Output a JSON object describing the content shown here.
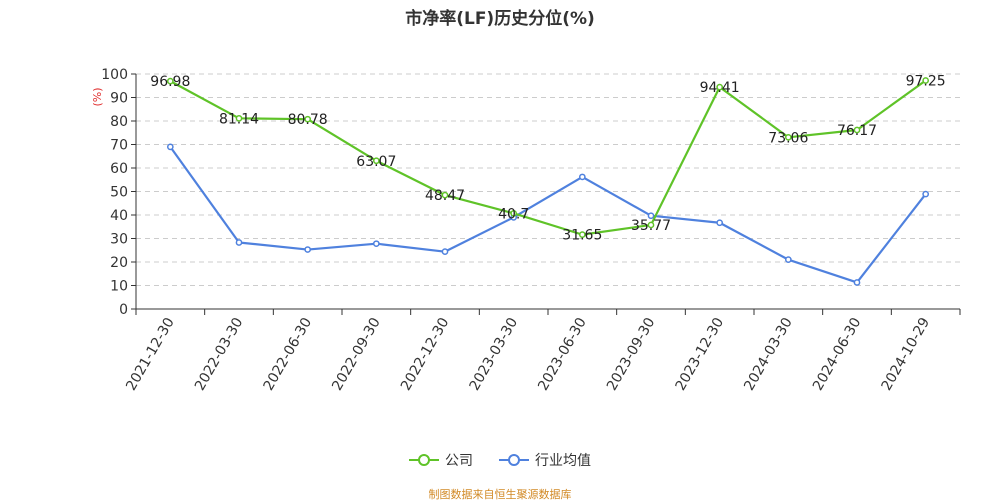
{
  "title": "市净率(LF)历史分位(%)",
  "source_note": "制图数据来自恒生聚源数据库",
  "chart_data": {
    "type": "line",
    "title": "市净率(LF)历史分位(%)",
    "ylabel": "(%)",
    "xlabel": "",
    "ylim": [
      0,
      100
    ],
    "yticks": [
      0,
      10,
      20,
      30,
      40,
      50,
      60,
      70,
      80,
      90,
      100
    ],
    "grid": true,
    "legend_position": "bottom-center",
    "categories": [
      "2021-12-30",
      "2022-03-30",
      "2022-06-30",
      "2022-09-30",
      "2022-12-30",
      "2023-03-30",
      "2023-06-30",
      "2023-09-30",
      "2023-12-30",
      "2024-03-30",
      "2024-06-30",
      "2024-10-29"
    ],
    "series": [
      {
        "name": "公司",
        "color": "#5fc328",
        "values": [
          96.98,
          81.14,
          80.78,
          63.07,
          48.47,
          40.7,
          31.65,
          35.77,
          94.41,
          73.06,
          76.17,
          97.25
        ],
        "labels": [
          "96.98",
          "81.14",
          "80.78",
          "63.07",
          "48.47",
          "40.7",
          "31.65",
          "35.77",
          "94.41",
          "73.06",
          "76.17",
          "97.25"
        ]
      },
      {
        "name": "行业均值",
        "color": "#4f81de",
        "values": [
          69.0,
          28.3,
          25.3,
          27.8,
          24.4,
          39.0,
          56.2,
          39.7,
          36.7,
          21.0,
          11.3,
          48.9
        ]
      }
    ]
  }
}
